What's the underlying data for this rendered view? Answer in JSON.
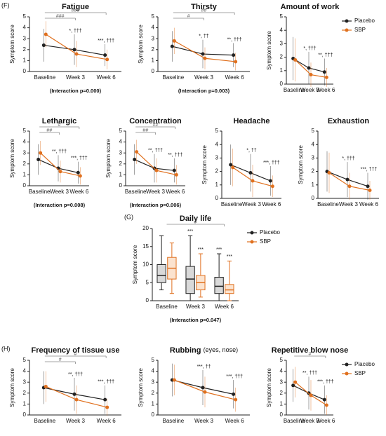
{
  "chart_data": [
    {
      "type": "line",
      "panel_label": "(F)",
      "title": "Fatigue",
      "y_label": "Symptom score",
      "categories": [
        "Baseline",
        "Week 3",
        "Week 6"
      ],
      "series": [
        {
          "color": "#222222",
          "values": [
            2.4,
            2.0,
            1.5
          ],
          "errors": [
            1.5,
            1.4,
            1.0
          ]
        },
        {
          "color": "#e0701e",
          "values": [
            3.4,
            1.6,
            1.1
          ],
          "errors": [
            1.2,
            1.2,
            0.9
          ]
        }
      ],
      "ylim": [
        0,
        5
      ],
      "yticks": [
        0,
        1,
        2,
        3,
        4,
        5
      ],
      "point_labels": [
        null,
        "*, †††",
        "***, †††"
      ],
      "brackets": [
        "###",
        "###"
      ],
      "annotation": "(Interaction p=0.000)"
    },
    {
      "type": "line",
      "title": "Thirsty",
      "y_label": "Symptom score",
      "categories": [
        "Baseline",
        "Week 3",
        "Week 6"
      ],
      "series": [
        {
          "color": "#222222",
          "values": [
            2.3,
            1.6,
            1.5
          ],
          "errors": [
            1.4,
            1.3,
            1.1
          ]
        },
        {
          "color": "#e0701e",
          "values": [
            2.8,
            1.2,
            0.9
          ],
          "errors": [
            1.2,
            1.0,
            0.8
          ]
        }
      ],
      "ylim": [
        0,
        5
      ],
      "yticks": [
        0,
        1,
        2,
        3,
        4,
        5
      ],
      "point_labels": [
        null,
        "*, ††",
        "**, †††"
      ],
      "brackets": [
        "##",
        "#"
      ],
      "annotation": "(Interaction p=0.003)"
    },
    {
      "type": "line",
      "title": "Amount of work",
      "y_label": "Symptom score",
      "categories": [
        "Baseline",
        "Week 3",
        "Week 6"
      ],
      "legend": "right",
      "series": [
        {
          "name": "Placebo",
          "color": "#222222",
          "values": [
            1.9,
            1.2,
            0.9
          ],
          "errors": [
            1.6,
            1.2,
            1.0
          ]
        },
        {
          "name": "SBP",
          "color": "#e0701e",
          "values": [
            1.8,
            0.7,
            0.5
          ],
          "errors": [
            1.6,
            0.9,
            0.7
          ]
        }
      ],
      "ylim": [
        0,
        5
      ],
      "yticks": [
        0,
        1,
        2,
        3,
        4,
        5
      ],
      "point_labels": [
        null,
        "*, †††",
        "**, †††"
      ]
    },
    {
      "type": "line",
      "title": "Lethargic",
      "y_label": "Symptom score",
      "categories": [
        "Baseline",
        "Week 3",
        "Week 6"
      ],
      "series": [
        {
          "color": "#222222",
          "values": [
            2.4,
            1.6,
            1.2
          ],
          "errors": [
            1.4,
            1.2,
            1.0
          ]
        },
        {
          "color": "#e0701e",
          "values": [
            3.0,
            1.3,
            0.9
          ],
          "errors": [
            1.1,
            1.0,
            0.8
          ]
        }
      ],
      "ylim": [
        0,
        5
      ],
      "yticks": [
        0,
        1,
        2,
        3,
        4,
        5
      ],
      "point_labels": [
        null,
        "**, †††",
        "***, †††"
      ],
      "brackets": [
        "#",
        "##"
      ],
      "annotation": "(Interaction p=0.008)"
    },
    {
      "type": "line",
      "title": "Concentration",
      "y_label": "Symptom score",
      "categories": [
        "Baseline",
        "Week 3",
        "Week 6"
      ],
      "series": [
        {
          "color": "#222222",
          "values": [
            2.4,
            1.6,
            1.4
          ],
          "errors": [
            1.4,
            1.3,
            1.1
          ]
        },
        {
          "color": "#e0701e",
          "values": [
            3.1,
            1.4,
            1.0
          ],
          "errors": [
            1.1,
            1.1,
            0.9
          ]
        }
      ],
      "ylim": [
        0,
        5
      ],
      "yticks": [
        0,
        1,
        2,
        3,
        4,
        5
      ],
      "point_labels": [
        null,
        "**, †††",
        "**, †††"
      ],
      "brackets": [
        "##",
        "##"
      ],
      "annotation": "(Interaction p=0.006)"
    },
    {
      "type": "line",
      "title": "Headache",
      "y_label": "Symptom score",
      "categories": [
        "Baseline",
        "Week 3",
        "Week 6"
      ],
      "series": [
        {
          "color": "#222222",
          "values": [
            2.5,
            1.9,
            1.3
          ],
          "errors": [
            1.5,
            1.4,
            1.1
          ]
        },
        {
          "color": "#e0701e",
          "values": [
            2.3,
            1.3,
            0.9
          ],
          "errors": [
            1.4,
            1.2,
            0.8
          ]
        }
      ],
      "ylim": [
        0,
        5
      ],
      "yticks": [
        0,
        1,
        2,
        3,
        4,
        5
      ],
      "point_labels": [
        null,
        "*, ††",
        "***, †††"
      ]
    },
    {
      "type": "line",
      "title": "Exhaustion",
      "y_label": "Symptom score",
      "categories": [
        "Baseline",
        "Week 3",
        "Week 6"
      ],
      "series": [
        {
          "color": "#222222",
          "values": [
            2.0,
            1.4,
            0.9
          ],
          "errors": [
            1.5,
            1.3,
            1.0
          ]
        },
        {
          "color": "#e0701e",
          "values": [
            1.9,
            0.9,
            0.6
          ],
          "errors": [
            1.5,
            1.0,
            0.7
          ]
        }
      ],
      "ylim": [
        0,
        5
      ],
      "yticks": [
        0,
        1,
        2,
        3,
        4,
        5
      ],
      "point_labels": [
        null,
        "*, †††",
        "***, †††"
      ]
    },
    {
      "type": "box",
      "panel_label": "(G)",
      "title": "Daily life",
      "y_label": "Symptom score",
      "categories": [
        "Baseline",
        "Week 3",
        "Week 6"
      ],
      "legend": "right",
      "series": [
        {
          "name": "Placebo",
          "color": "#222222",
          "fill": "#d9d9d9",
          "min": [
            3,
            0,
            0
          ],
          "q1": [
            5,
            2,
            2
          ],
          "median": [
            7,
            6,
            4
          ],
          "q3": [
            10,
            9.5,
            6.5
          ],
          "max": [
            18,
            18,
            13
          ]
        },
        {
          "name": "SBP",
          "color": "#e0701e",
          "fill": "#fbe3cf",
          "min": [
            2,
            1,
            0
          ],
          "q1": [
            6,
            3,
            2
          ],
          "median": [
            9,
            5,
            3
          ],
          "q3": [
            12,
            7,
            4.5
          ],
          "max": [
            16,
            13,
            11
          ]
        }
      ],
      "ylim": [
        0,
        20
      ],
      "yticks": [
        0,
        5,
        10,
        15,
        20
      ],
      "point_labels": [
        null,
        "***",
        "***"
      ],
      "brackets": [
        "#"
      ],
      "annotation": "(Interaction p=0.047)"
    },
    {
      "type": "line",
      "panel_label": "(H)",
      "title": "Frequency of tissue use",
      "y_label": "Symptom score",
      "categories": [
        "Baseline",
        "Week 3",
        "Week 6"
      ],
      "series": [
        {
          "color": "#222222",
          "values": [
            2.5,
            1.9,
            1.4
          ],
          "errors": [
            1.5,
            1.5,
            1.3
          ]
        },
        {
          "color": "#e0701e",
          "values": [
            2.6,
            1.4,
            0.7
          ],
          "errors": [
            1.4,
            1.3,
            0.8
          ]
        }
      ],
      "ylim": [
        0,
        5
      ],
      "yticks": [
        0,
        1,
        2,
        3,
        4,
        5
      ],
      "point_labels": [
        null,
        "**, †††",
        "***, †††"
      ],
      "brackets": [
        "#",
        "#"
      ]
    },
    {
      "type": "line",
      "title": "Rubbing",
      "subtitle": "(eyes, nose)",
      "y_label": "Symptom score",
      "categories": [
        "Baseline",
        "Week 3",
        "Week 6"
      ],
      "series": [
        {
          "color": "#222222",
          "values": [
            3.2,
            2.5,
            1.9
          ],
          "errors": [
            1.5,
            1.6,
            1.3
          ]
        },
        {
          "color": "#e0701e",
          "values": [
            3.2,
            2.1,
            1.4
          ],
          "errors": [
            1.4,
            1.4,
            1.1
          ]
        }
      ],
      "ylim": [
        0,
        5
      ],
      "yticks": [
        0,
        1,
        2,
        3,
        4,
        5
      ],
      "point_labels": [
        null,
        "***, ††",
        "***, †††"
      ]
    },
    {
      "type": "line",
      "title": "Repetitive blow nose",
      "y_label": "Symptom score",
      "categories": [
        "Baseline",
        "Week 3",
        "Week 6"
      ],
      "legend": "right",
      "series": [
        {
          "name": "Placebo",
          "color": "#222222",
          "values": [
            2.7,
            2.0,
            1.4
          ],
          "errors": [
            1.5,
            1.5,
            1.3
          ]
        },
        {
          "name": "SBP",
          "color": "#e0701e",
          "values": [
            3.0,
            1.8,
            0.9
          ],
          "errors": [
            1.4,
            1.4,
            0.9
          ]
        }
      ],
      "ylim": [
        0,
        5
      ],
      "yticks": [
        0,
        1,
        2,
        3,
        4,
        5
      ],
      "point_labels": [
        null,
        "**, †††",
        "***, †††"
      ],
      "brackets": [
        "#"
      ]
    }
  ]
}
